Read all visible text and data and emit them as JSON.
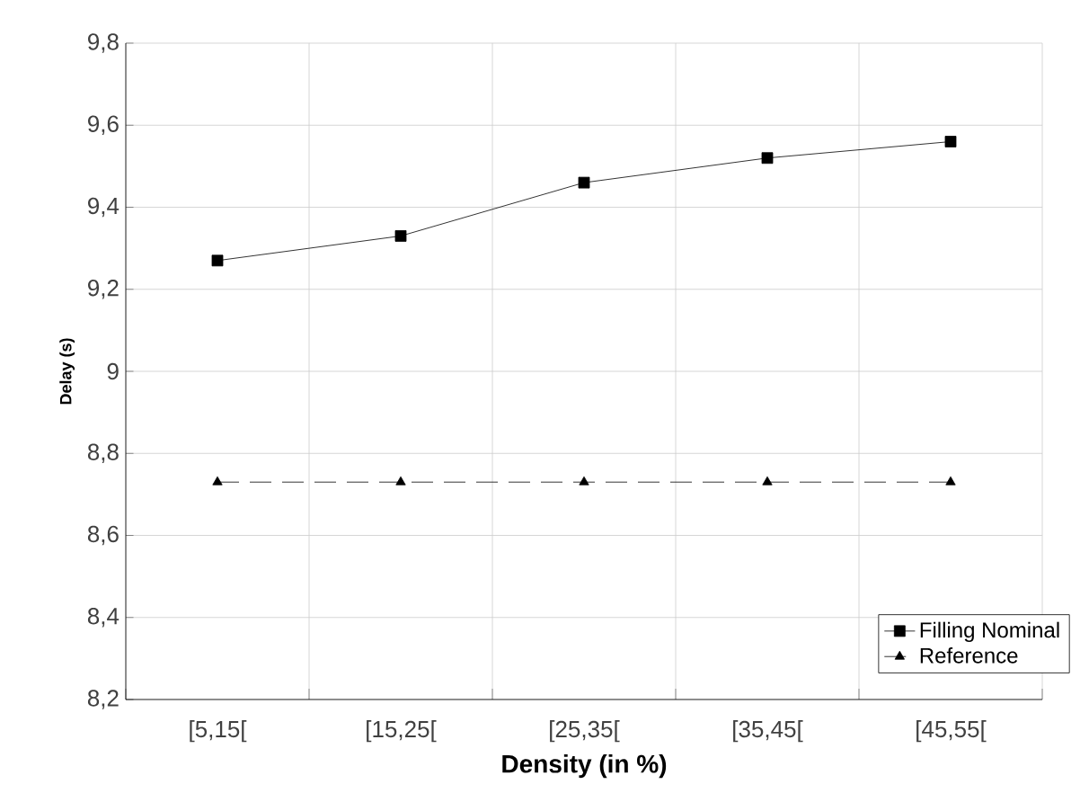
{
  "chart_data": {
    "type": "line",
    "xlabel": "Density (in %)",
    "ylabel": "Delay (s)",
    "categories": [
      "[5,15[",
      "[15,25[",
      "[25,35[",
      "[35,45[",
      "[45,55["
    ],
    "series": [
      {
        "name": "Filling Nominal",
        "color": "#000000",
        "marker": "square",
        "line_style": "solid",
        "values": [
          9.27,
          9.33,
          9.46,
          9.52,
          9.56
        ]
      },
      {
        "name": "Reference",
        "color": "#000000",
        "marker": "triangle",
        "line_style": "dashed",
        "values": [
          8.73,
          8.73,
          8.73,
          8.73,
          8.73
        ]
      }
    ],
    "ylim": [
      8.2,
      9.8
    ],
    "yticks": [
      {
        "value": 8.2,
        "label": "8,2"
      },
      {
        "value": 8.4,
        "label": "8,4"
      },
      {
        "value": 8.6,
        "label": "8,6"
      },
      {
        "value": 8.8,
        "label": "8,8"
      },
      9,
      {
        "value": 9.2,
        "label": "9,2"
      },
      {
        "value": 9.4,
        "label": "9,4"
      },
      {
        "value": 9.6,
        "label": "9,6"
      },
      {
        "value": 9.8,
        "label": "9,8"
      }
    ],
    "grid": true,
    "legend": "bottom right"
  }
}
